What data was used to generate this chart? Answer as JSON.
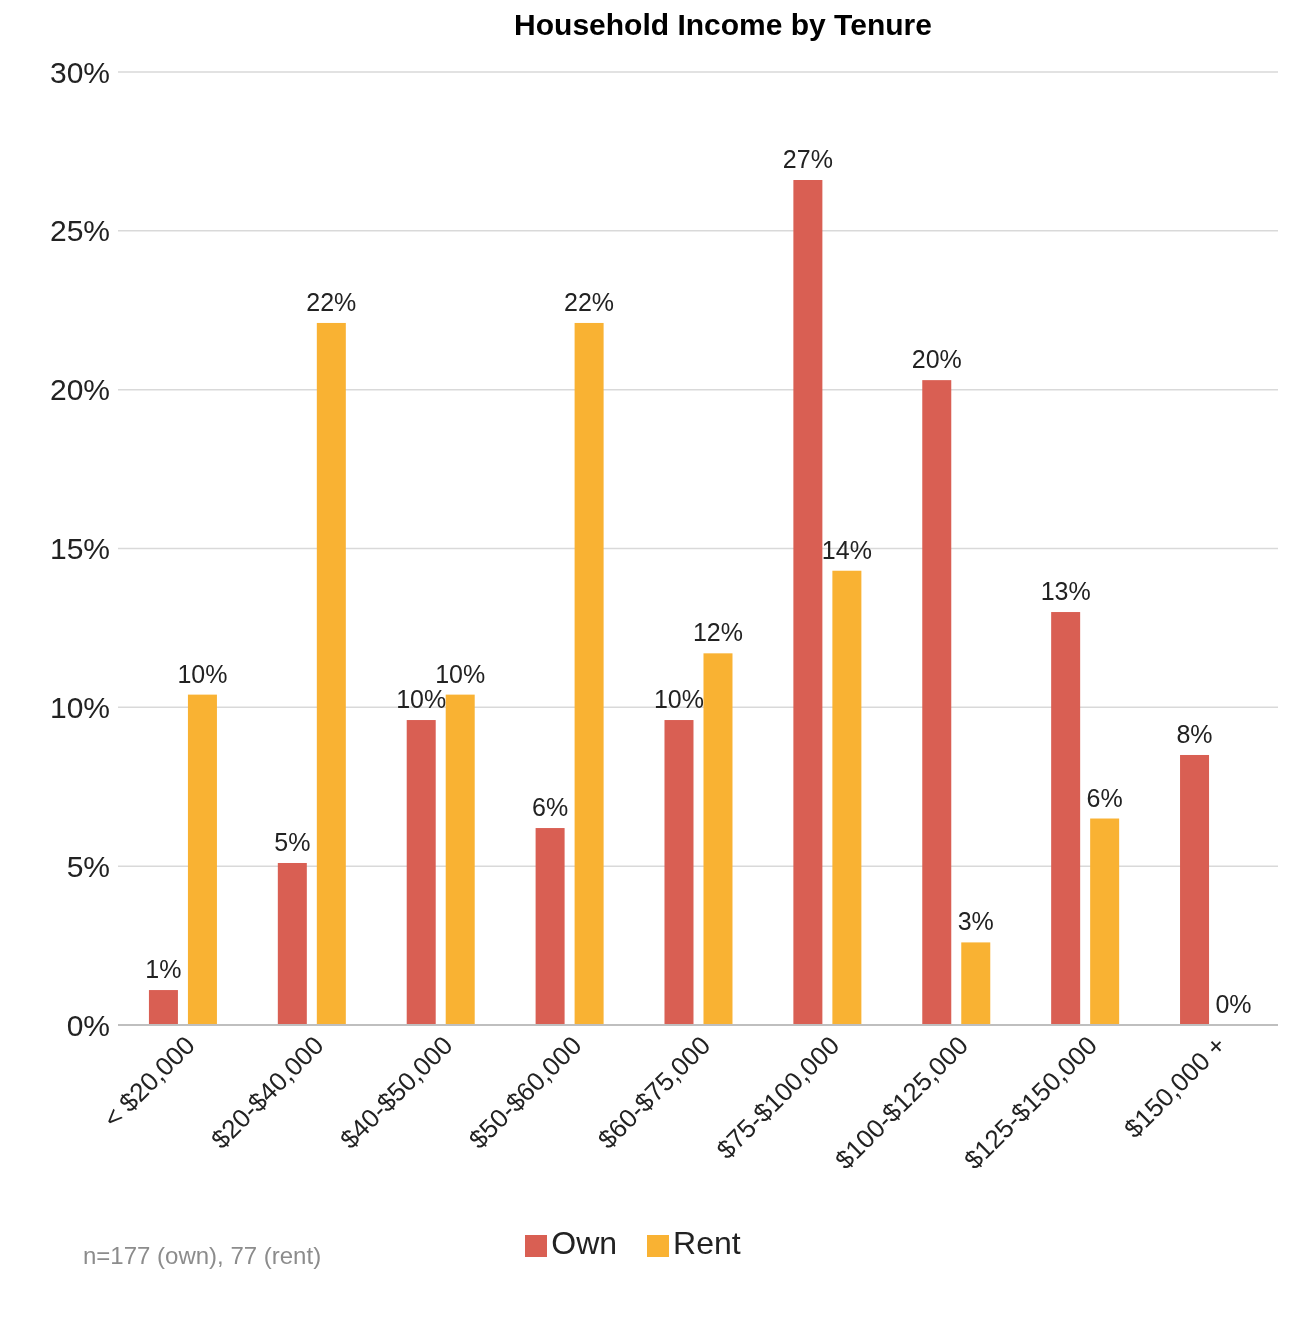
{
  "chart_data": {
    "type": "bar",
    "title": "Household Income by Tenure",
    "categories": [
      "< $20,000",
      "$20-$40,000",
      "$40-$50,000",
      "$50-$60,000",
      "$60-$75,000",
      "$75-$100,000",
      "$100-$125,000",
      "$125-$150,000",
      "$150,000 +"
    ],
    "series": [
      {
        "name": "Own",
        "color": "#d95f53",
        "values": [
          1.1,
          5.1,
          9.6,
          6.2,
          9.6,
          26.6,
          20.3,
          13.0,
          8.5
        ],
        "value_labels": [
          "1%",
          "5%",
          "10%",
          "6%",
          "10%",
          "27%",
          "20%",
          "13%",
          "8%"
        ]
      },
      {
        "name": "Rent",
        "color": "#f9b233",
        "values": [
          10.4,
          22.1,
          10.4,
          22.1,
          11.7,
          14.3,
          2.6,
          6.5,
          0
        ],
        "value_labels": [
          "10%",
          "22%",
          "10%",
          "22%",
          "12%",
          "14%",
          "3%",
          "6%",
          "0%"
        ]
      }
    ],
    "ylim": [
      0,
      30
    ],
    "yticks": [
      {
        "value": 0,
        "label": "0%"
      },
      {
        "value": 5,
        "label": "5%"
      },
      {
        "value": 10,
        "label": "10%"
      },
      {
        "value": 15,
        "label": "15%"
      },
      {
        "value": 20,
        "label": "20%"
      },
      {
        "value": 25,
        "label": "25%"
      },
      {
        "value": 30,
        "label": "30%"
      }
    ],
    "grid": "y",
    "legend": "bottom",
    "annotations": [
      "n=177 (own), 77 (rent)"
    ]
  }
}
